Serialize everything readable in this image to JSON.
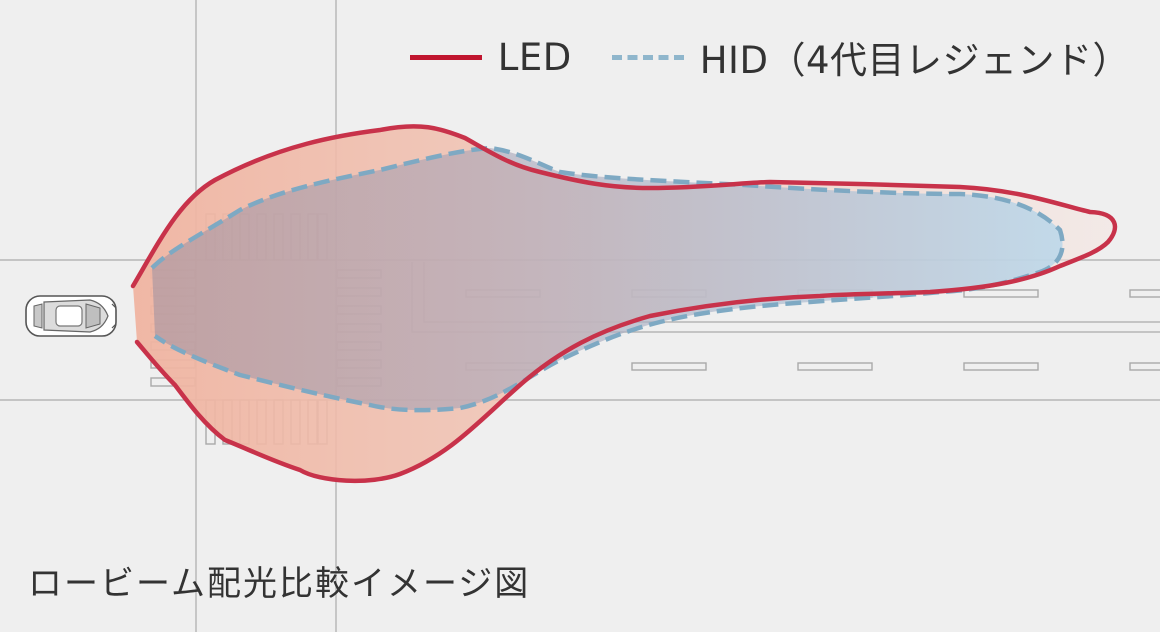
{
  "legend": {
    "led_label": "LED",
    "hid_label": "HID（4代目レジェンド）"
  },
  "caption": "ロービーム配光比較イメージ図",
  "colors": {
    "background": "#efefef",
    "led_line": "#c8324a",
    "led_fill": "#f0b8a6",
    "hid_line": "#7ea9c3",
    "hid_fill": "#b9d7ea",
    "road_lines": "#b5b5b5"
  },
  "icons": {
    "car": "car-icon-topview"
  }
}
